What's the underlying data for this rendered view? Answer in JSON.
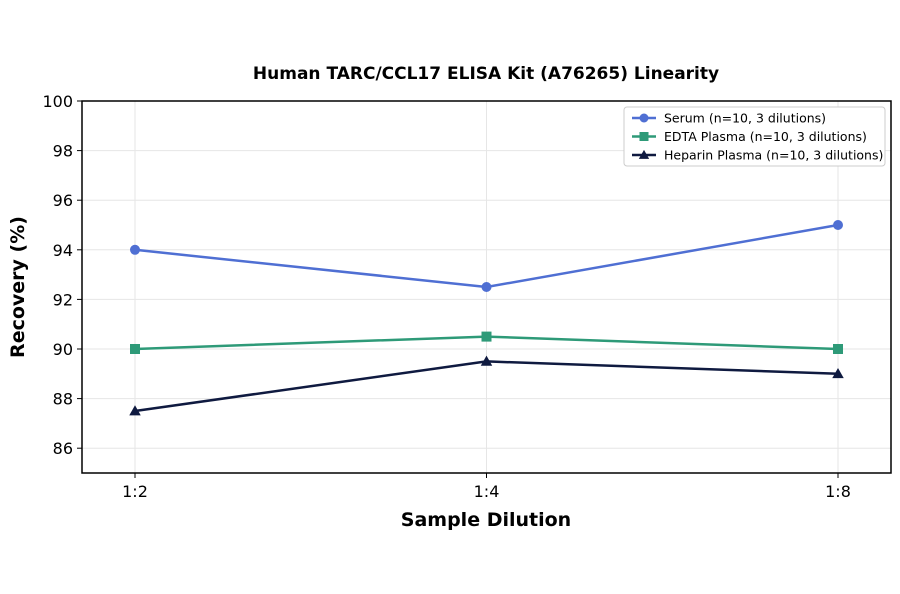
{
  "chart_data": {
    "type": "line",
    "title": "Human TARC/CCL17 ELISA Kit (A76265) Linearity",
    "xlabel": "Sample Dilution",
    "ylabel": "Recovery (%)",
    "categories": [
      "1:2",
      "1:4",
      "1:8"
    ],
    "ylim": [
      85,
      100
    ],
    "yticks": [
      86,
      88,
      90,
      92,
      94,
      96,
      98,
      100
    ],
    "grid": true,
    "legend_position": "top-right",
    "series": [
      {
        "name": "Serum (n=10, 3 dilutions)",
        "values": [
          94.0,
          92.5,
          95.0
        ],
        "color": "#4f6fd3",
        "marker": "circle"
      },
      {
        "name": "EDTA Plasma (n=10, 3 dilutions)",
        "values": [
          90.0,
          90.5,
          90.0
        ],
        "color": "#2e9a78",
        "marker": "square"
      },
      {
        "name": "Heparin Plasma (n=10, 3 dilutions)",
        "values": [
          87.5,
          89.5,
          89.0
        ],
        "color": "#0f1a40",
        "marker": "triangle"
      }
    ]
  }
}
